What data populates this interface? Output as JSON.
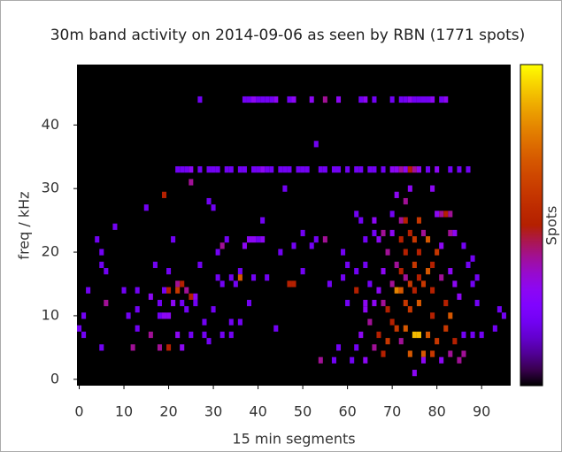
{
  "chart_data": {
    "type": "heatmap",
    "title": "30m band activity on 2014-09-06 as seen by RBN (1771 spots)",
    "x_label": "15 min segments",
    "y_label": "freq / kHz",
    "colorbar_label": "Spots",
    "xlim": [
      -0.5,
      96.5
    ],
    "ylim": [
      -1,
      49.5
    ],
    "zlim": [
      0,
      10
    ],
    "xticks": [
      0,
      10,
      20,
      30,
      40,
      50,
      60,
      70,
      80,
      90
    ],
    "yticks": [
      0,
      10,
      20,
      30,
      40
    ],
    "background": "#000000",
    "cells": [
      [
        27,
        44,
        2
      ],
      [
        37,
        44,
        2
      ],
      [
        38,
        44,
        2
      ],
      [
        39,
        44,
        3
      ],
      [
        40,
        44,
        2
      ],
      [
        41,
        44,
        2
      ],
      [
        42,
        44,
        2
      ],
      [
        43,
        44,
        2
      ],
      [
        44,
        44,
        3
      ],
      [
        47,
        44,
        2
      ],
      [
        48,
        44,
        3
      ],
      [
        52,
        44,
        3
      ],
      [
        55,
        44,
        4
      ],
      [
        58,
        44,
        3
      ],
      [
        63,
        44,
        2
      ],
      [
        64,
        44,
        3
      ],
      [
        66,
        44,
        2
      ],
      [
        70,
        44,
        2
      ],
      [
        72,
        44,
        2
      ],
      [
        73,
        44,
        2
      ],
      [
        74,
        44,
        3
      ],
      [
        75,
        44,
        2
      ],
      [
        76,
        44,
        2
      ],
      [
        77,
        44,
        2
      ],
      [
        78,
        44,
        2
      ],
      [
        79,
        44,
        3
      ],
      [
        81,
        44,
        2
      ],
      [
        82,
        44,
        3
      ],
      [
        53,
        37,
        2
      ],
      [
        22,
        33,
        2
      ],
      [
        23,
        33,
        2
      ],
      [
        24,
        33,
        2
      ],
      [
        25,
        33,
        3
      ],
      [
        27,
        33,
        2
      ],
      [
        29,
        33,
        2
      ],
      [
        30,
        33,
        2
      ],
      [
        31,
        33,
        2
      ],
      [
        33,
        33,
        2
      ],
      [
        34,
        33,
        2
      ],
      [
        36,
        33,
        2
      ],
      [
        37,
        33,
        2
      ],
      [
        39,
        33,
        2
      ],
      [
        40,
        33,
        2
      ],
      [
        41,
        33,
        3
      ],
      [
        42,
        33,
        2
      ],
      [
        43,
        33,
        2
      ],
      [
        45,
        33,
        2
      ],
      [
        46,
        33,
        2
      ],
      [
        47,
        33,
        2
      ],
      [
        49,
        33,
        2
      ],
      [
        50,
        33,
        2
      ],
      [
        51,
        33,
        2
      ],
      [
        54,
        33,
        2
      ],
      [
        55,
        33,
        2
      ],
      [
        57,
        33,
        2
      ],
      [
        58,
        33,
        2
      ],
      [
        60,
        33,
        2
      ],
      [
        62,
        33,
        2
      ],
      [
        63,
        33,
        2
      ],
      [
        65,
        33,
        2
      ],
      [
        66,
        33,
        2
      ],
      [
        68,
        33,
        2
      ],
      [
        70,
        33,
        3
      ],
      [
        71,
        33,
        3
      ],
      [
        72,
        33,
        4
      ],
      [
        73,
        33,
        3
      ],
      [
        74,
        33,
        5
      ],
      [
        75,
        33,
        4
      ],
      [
        76,
        33,
        3
      ],
      [
        78,
        33,
        2
      ],
      [
        80,
        33,
        3
      ],
      [
        83,
        33,
        2
      ],
      [
        85,
        33,
        2
      ],
      [
        87,
        33,
        2
      ],
      [
        25,
        31,
        4
      ],
      [
        19,
        29,
        5
      ],
      [
        46,
        30,
        2
      ],
      [
        74,
        30,
        3
      ],
      [
        79,
        30,
        3
      ],
      [
        71,
        29,
        3
      ],
      [
        29,
        28,
        2
      ],
      [
        73,
        28,
        4
      ],
      [
        30,
        27,
        2
      ],
      [
        15,
        27,
        2
      ],
      [
        62,
        26,
        2
      ],
      [
        70,
        26,
        2
      ],
      [
        80,
        26,
        3
      ],
      [
        81,
        26,
        4
      ],
      [
        82,
        26,
        5
      ],
      [
        83,
        26,
        4
      ],
      [
        8,
        24,
        2
      ],
      [
        41,
        25,
        2
      ],
      [
        63,
        25,
        2
      ],
      [
        66,
        25,
        3
      ],
      [
        72,
        25,
        4
      ],
      [
        73,
        25,
        5
      ],
      [
        76,
        25,
        6
      ],
      [
        4,
        22,
        2
      ],
      [
        21,
        22,
        2
      ],
      [
        33,
        22,
        2
      ],
      [
        38,
        22,
        3
      ],
      [
        39,
        22,
        3
      ],
      [
        40,
        22,
        2
      ],
      [
        41,
        22,
        3
      ],
      [
        50,
        23,
        2
      ],
      [
        66,
        23,
        2
      ],
      [
        68,
        23,
        4
      ],
      [
        70,
        23,
        3
      ],
      [
        74,
        23,
        5
      ],
      [
        77,
        23,
        4
      ],
      [
        83,
        23,
        4
      ],
      [
        84,
        23,
        3
      ],
      [
        53,
        22,
        2
      ],
      [
        55,
        22,
        4
      ],
      [
        64,
        22,
        2
      ],
      [
        67,
        22,
        3
      ],
      [
        72,
        22,
        5
      ],
      [
        75,
        22,
        6
      ],
      [
        78,
        22,
        7
      ],
      [
        32,
        21,
        4
      ],
      [
        37,
        21,
        3
      ],
      [
        48,
        21,
        2
      ],
      [
        52,
        21,
        2
      ],
      [
        81,
        21,
        3
      ],
      [
        86,
        21,
        2
      ],
      [
        5,
        20,
        2
      ],
      [
        31,
        20,
        2
      ],
      [
        45,
        20,
        2
      ],
      [
        59,
        20,
        2
      ],
      [
        69,
        20,
        4
      ],
      [
        73,
        20,
        5
      ],
      [
        76,
        20,
        5
      ],
      [
        80,
        20,
        6
      ],
      [
        88,
        19,
        2
      ],
      [
        5,
        18,
        2
      ],
      [
        17,
        18,
        2
      ],
      [
        27,
        18,
        2
      ],
      [
        60,
        18,
        2
      ],
      [
        64,
        18,
        2
      ],
      [
        71,
        18,
        4
      ],
      [
        75,
        18,
        6
      ],
      [
        79,
        18,
        5
      ],
      [
        87,
        18,
        2
      ],
      [
        6,
        17,
        2
      ],
      [
        20,
        17,
        2
      ],
      [
        36,
        17,
        2
      ],
      [
        50,
        17,
        2
      ],
      [
        62,
        17,
        2
      ],
      [
        68,
        17,
        3
      ],
      [
        72,
        17,
        5
      ],
      [
        78,
        17,
        7
      ],
      [
        83,
        17,
        3
      ],
      [
        36,
        16,
        7
      ],
      [
        34,
        16,
        2
      ],
      [
        31,
        16,
        2
      ],
      [
        39,
        16,
        2
      ],
      [
        42,
        16,
        2
      ],
      [
        59,
        16,
        2
      ],
      [
        73,
        16,
        4
      ],
      [
        76,
        16,
        5
      ],
      [
        81,
        16,
        4
      ],
      [
        89,
        16,
        2
      ],
      [
        2,
        14,
        2
      ],
      [
        10,
        14,
        2
      ],
      [
        13,
        14,
        2
      ],
      [
        22,
        15,
        4
      ],
      [
        23,
        15,
        5
      ],
      [
        32,
        15,
        2
      ],
      [
        35,
        15,
        2
      ],
      [
        47,
        15,
        5
      ],
      [
        48,
        15,
        5
      ],
      [
        56,
        15,
        2
      ],
      [
        65,
        15,
        2
      ],
      [
        70,
        15,
        4
      ],
      [
        74,
        15,
        6
      ],
      [
        77,
        15,
        6
      ],
      [
        84,
        15,
        3
      ],
      [
        88,
        15,
        2
      ],
      [
        16,
        13,
        3
      ],
      [
        19,
        14,
        2
      ],
      [
        20,
        14,
        5
      ],
      [
        22,
        14,
        6
      ],
      [
        24,
        14,
        4
      ],
      [
        25,
        13,
        5
      ],
      [
        26,
        13,
        3
      ],
      [
        62,
        14,
        5
      ],
      [
        67,
        14,
        3
      ],
      [
        71,
        14,
        8
      ],
      [
        72,
        14,
        7
      ],
      [
        75,
        14,
        5
      ],
      [
        79,
        14,
        5
      ],
      [
        85,
        13,
        3
      ],
      [
        6,
        12,
        4
      ],
      [
        13,
        11,
        2
      ],
      [
        18,
        12,
        2
      ],
      [
        21,
        12,
        3
      ],
      [
        23,
        12,
        2
      ],
      [
        26,
        12,
        2
      ],
      [
        38,
        12,
        2
      ],
      [
        60,
        12,
        2
      ],
      [
        64,
        12,
        3
      ],
      [
        66,
        12,
        3
      ],
      [
        68,
        12,
        4
      ],
      [
        73,
        12,
        6
      ],
      [
        76,
        12,
        7
      ],
      [
        82,
        12,
        5
      ],
      [
        89,
        12,
        2
      ],
      [
        1,
        10,
        2
      ],
      [
        11,
        10,
        2
      ],
      [
        18,
        10,
        2
      ],
      [
        19,
        10,
        3
      ],
      [
        20,
        10,
        3
      ],
      [
        24,
        11,
        2
      ],
      [
        30,
        11,
        2
      ],
      [
        64,
        11,
        3
      ],
      [
        69,
        11,
        5
      ],
      [
        74,
        11,
        6
      ],
      [
        79,
        10,
        5
      ],
      [
        83,
        10,
        7
      ],
      [
        94,
        11,
        2
      ],
      [
        95,
        10,
        2
      ],
      [
        0,
        8,
        2
      ],
      [
        13,
        8,
        2
      ],
      [
        28,
        9,
        2
      ],
      [
        34,
        9,
        2
      ],
      [
        36,
        9,
        2
      ],
      [
        44,
        8,
        2
      ],
      [
        65,
        9,
        4
      ],
      [
        70,
        9,
        5
      ],
      [
        71,
        8,
        6
      ],
      [
        73,
        8,
        7
      ],
      [
        75,
        7,
        9
      ],
      [
        76,
        7,
        9
      ],
      [
        78,
        7,
        7
      ],
      [
        82,
        8,
        6
      ],
      [
        86,
        7,
        2
      ],
      [
        90,
        7,
        2
      ],
      [
        93,
        8,
        2
      ],
      [
        1,
        7,
        2
      ],
      [
        16,
        7,
        4
      ],
      [
        22,
        7,
        3
      ],
      [
        25,
        7,
        2
      ],
      [
        28,
        7,
        2
      ],
      [
        32,
        7,
        2
      ],
      [
        34,
        7,
        2
      ],
      [
        63,
        7,
        3
      ],
      [
        67,
        7,
        5
      ],
      [
        69,
        6,
        6
      ],
      [
        72,
        6,
        4
      ],
      [
        80,
        6,
        6
      ],
      [
        84,
        6,
        5
      ],
      [
        88,
        7,
        2
      ],
      [
        5,
        5,
        2
      ],
      [
        12,
        5,
        4
      ],
      [
        18,
        5,
        4
      ],
      [
        20,
        5,
        5
      ],
      [
        23,
        5,
        3
      ],
      [
        29,
        6,
        2
      ],
      [
        58,
        5,
        2
      ],
      [
        62,
        5,
        2
      ],
      [
        66,
        5,
        4
      ],
      [
        68,
        4,
        5
      ],
      [
        74,
        4,
        7
      ],
      [
        77,
        4,
        7
      ],
      [
        79,
        4,
        6
      ],
      [
        83,
        4,
        4
      ],
      [
        85,
        3,
        4
      ],
      [
        86,
        4,
        4
      ],
      [
        54,
        3,
        4
      ],
      [
        57,
        3,
        2
      ],
      [
        61,
        3,
        2
      ],
      [
        64,
        3,
        3
      ],
      [
        77,
        3,
        3
      ],
      [
        81,
        3,
        3
      ],
      [
        75,
        1,
        3
      ]
    ]
  }
}
